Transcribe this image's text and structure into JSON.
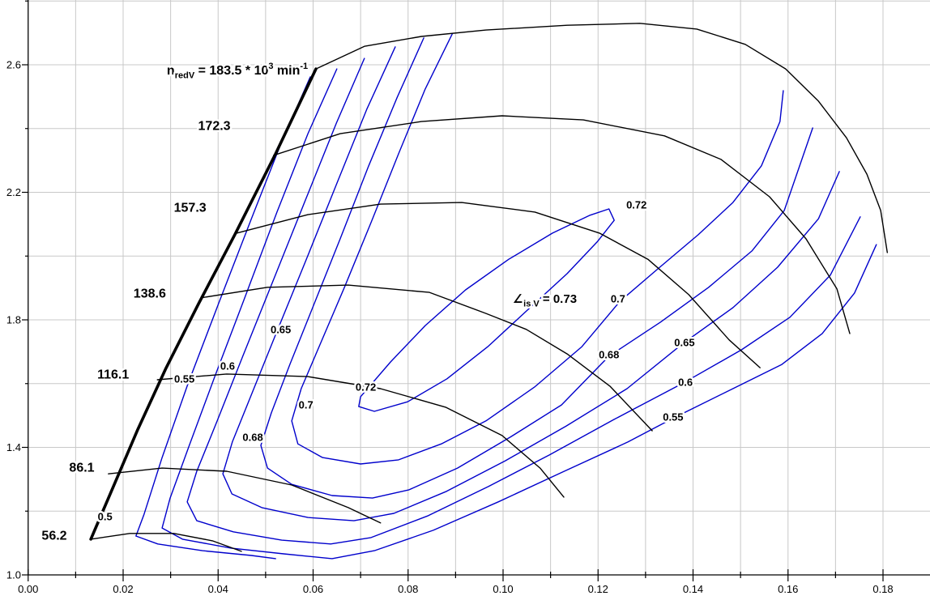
{
  "chart_data": {
    "type": "line",
    "description": "Compressor map: pressure ratio vs reduced mass flow with reduced-speed lines (black) and isentropic efficiency contours (blue)",
    "x_axis": {
      "min": 0,
      "max": 0.19,
      "grid_step": 0.01,
      "label_step": 0.02,
      "tick_labels": [
        "0.00",
        "0.02",
        "0.04",
        "0.06",
        "0.08",
        "0.10",
        "0.12",
        "0.14",
        "0.16",
        "0.18"
      ],
      "tick_values": [
        0,
        0.02,
        0.04,
        0.06,
        0.08,
        0.1,
        0.12,
        0.14,
        0.16,
        0.18
      ]
    },
    "y_axis": {
      "min": 1.0,
      "max": 2.8,
      "grid_step": 0.2,
      "label_step": 0.4,
      "tick_labels": [
        "1.0",
        "1.4",
        "1.8",
        "2.2",
        "2.6"
      ],
      "tick_values": [
        1.0,
        1.4,
        1.8,
        2.2,
        2.6
      ]
    },
    "colors": {
      "speed_line": "#000000",
      "contour": "#0000cc",
      "grid": "#c8c8c8",
      "axis": "#000000",
      "text": "#000000"
    },
    "surge_line": {
      "name": "surge-line",
      "points": [
        [
          0.0132,
          1.112
        ],
        [
          0.018,
          1.279
        ],
        [
          0.0231,
          1.457
        ],
        [
          0.029,
          1.648
        ],
        [
          0.0359,
          1.851
        ],
        [
          0.0435,
          2.067
        ],
        [
          0.0521,
          2.321
        ],
        [
          0.0606,
          2.587
        ]
      ]
    },
    "speed_lines": [
      {
        "value": 56.2,
        "points": [
          [
            0.0132,
            1.112
          ],
          [
            0.0214,
            1.13
          ],
          [
            0.0307,
            1.13
          ],
          [
            0.0388,
            1.107
          ],
          [
            0.0449,
            1.074
          ]
        ]
      },
      {
        "value": 86.1,
        "points": [
          [
            0.0169,
            1.317
          ],
          [
            0.0282,
            1.335
          ],
          [
            0.0418,
            1.325
          ],
          [
            0.0555,
            1.282
          ],
          [
            0.0674,
            1.211
          ],
          [
            0.0742,
            1.163
          ]
        ]
      },
      {
        "value": 116.1,
        "points": [
          [
            0.0272,
            1.612
          ],
          [
            0.0418,
            1.63
          ],
          [
            0.0589,
            1.622
          ],
          [
            0.0742,
            1.584
          ],
          [
            0.0879,
            1.526
          ],
          [
            0.0998,
            1.437
          ],
          [
            0.1078,
            1.335
          ],
          [
            0.1128,
            1.244
          ]
        ]
      },
      {
        "value": 138.6,
        "points": [
          [
            0.0364,
            1.869
          ],
          [
            0.0504,
            1.902
          ],
          [
            0.0674,
            1.909
          ],
          [
            0.0845,
            1.886
          ],
          [
            0.0964,
            1.82
          ],
          [
            0.1049,
            1.77
          ],
          [
            0.1135,
            1.693
          ],
          [
            0.1225,
            1.592
          ],
          [
            0.1314,
            1.452
          ]
        ]
      },
      {
        "value": 157.3,
        "points": [
          [
            0.0439,
            2.072
          ],
          [
            0.0589,
            2.13
          ],
          [
            0.0742,
            2.163
          ],
          [
            0.0913,
            2.168
          ],
          [
            0.1067,
            2.138
          ],
          [
            0.1203,
            2.072
          ],
          [
            0.1305,
            1.99
          ],
          [
            0.1391,
            1.879
          ],
          [
            0.1476,
            1.737
          ],
          [
            0.1541,
            1.65
          ]
        ]
      },
      {
        "value": 172.3,
        "points": [
          [
            0.0517,
            2.316
          ],
          [
            0.0657,
            2.384
          ],
          [
            0.0828,
            2.422
          ],
          [
            0.0998,
            2.44
          ],
          [
            0.1169,
            2.427
          ],
          [
            0.134,
            2.377
          ],
          [
            0.1459,
            2.303
          ],
          [
            0.1561,
            2.186
          ],
          [
            0.1638,
            2.054
          ],
          [
            0.1703,
            1.897
          ],
          [
            0.173,
            1.757
          ]
        ]
      },
      {
        "value": 183.5,
        "points": [
          [
            0.0606,
            2.587
          ],
          [
            0.0708,
            2.658
          ],
          [
            0.0828,
            2.689
          ],
          [
            0.0964,
            2.709
          ],
          [
            0.1135,
            2.724
          ],
          [
            0.1288,
            2.73
          ],
          [
            0.1408,
            2.712
          ],
          [
            0.151,
            2.664
          ],
          [
            0.1595,
            2.587
          ],
          [
            0.1664,
            2.486
          ],
          [
            0.1723,
            2.371
          ],
          [
            0.1766,
            2.257
          ],
          [
            0.1795,
            2.143
          ],
          [
            0.1809,
            2.011
          ]
        ]
      }
    ],
    "efficiency_contours": [
      {
        "value": 0.5,
        "closed": false,
        "points": [
          [
            0.0594,
            2.562
          ],
          [
            0.0534,
            2.359
          ],
          [
            0.047,
            2.117
          ],
          [
            0.0401,
            1.851
          ],
          [
            0.0336,
            1.597
          ],
          [
            0.0282,
            1.368
          ],
          [
            0.0244,
            1.19
          ],
          [
            0.0227,
            1.122
          ],
          [
            0.0273,
            1.097
          ],
          [
            0.0367,
            1.076
          ],
          [
            0.047,
            1.061
          ],
          [
            0.0521,
            1.051
          ]
        ]
      },
      {
        "value": 0.55,
        "closed": false,
        "points": [
          [
            0.065,
            2.587
          ],
          [
            0.0589,
            2.384
          ],
          [
            0.0524,
            2.138
          ],
          [
            0.0456,
            1.869
          ],
          [
            0.0393,
            1.622
          ],
          [
            0.0338,
            1.401
          ],
          [
            0.0299,
            1.241
          ],
          [
            0.0282,
            1.147
          ],
          [
            0.0325,
            1.112
          ],
          [
            0.0427,
            1.084
          ],
          [
            0.0538,
            1.066
          ],
          [
            0.064,
            1.051
          ],
          [
            0.0729,
            1.076
          ],
          [
            0.0853,
            1.14
          ],
          [
            0.099,
            1.229
          ],
          [
            0.1126,
            1.323
          ],
          [
            0.1263,
            1.417
          ],
          [
            0.136,
            1.493
          ],
          [
            0.1484,
            1.584
          ],
          [
            0.1587,
            1.66
          ],
          [
            0.1672,
            1.757
          ],
          [
            0.174,
            1.884
          ],
          [
            0.1786,
            2.036
          ]
        ]
      },
      {
        "value": 0.6,
        "closed": false,
        "points": [
          [
            0.0708,
            2.62
          ],
          [
            0.0649,
            2.417
          ],
          [
            0.0584,
            2.176
          ],
          [
            0.0517,
            1.927
          ],
          [
            0.0452,
            1.686
          ],
          [
            0.0398,
            1.483
          ],
          [
            0.0355,
            1.325
          ],
          [
            0.0335,
            1.229
          ],
          [
            0.0355,
            1.17
          ],
          [
            0.0432,
            1.135
          ],
          [
            0.0534,
            1.109
          ],
          [
            0.0637,
            1.097
          ],
          [
            0.0722,
            1.117
          ],
          [
            0.0841,
            1.185
          ],
          [
            0.0969,
            1.277
          ],
          [
            0.1097,
            1.376
          ],
          [
            0.1234,
            1.488
          ],
          [
            0.1382,
            1.604
          ],
          [
            0.1502,
            1.706
          ],
          [
            0.1604,
            1.808
          ],
          [
            0.1689,
            1.94
          ],
          [
            0.1752,
            2.123
          ]
        ]
      },
      {
        "value": 0.65,
        "closed": false,
        "points": [
          [
            0.0773,
            2.656
          ],
          [
            0.0713,
            2.46
          ],
          [
            0.0649,
            2.224
          ],
          [
            0.0584,
            1.983
          ],
          [
            0.0522,
            1.757
          ],
          [
            0.0471,
            1.569
          ],
          [
            0.043,
            1.417
          ],
          [
            0.041,
            1.317
          ],
          [
            0.0429,
            1.254
          ],
          [
            0.0492,
            1.211
          ],
          [
            0.0589,
            1.18
          ],
          [
            0.0686,
            1.17
          ],
          [
            0.077,
            1.193
          ],
          [
            0.0881,
            1.262
          ],
          [
            0.1005,
            1.358
          ],
          [
            0.1133,
            1.467
          ],
          [
            0.1261,
            1.584
          ],
          [
            0.1379,
            1.726
          ],
          [
            0.1484,
            1.838
          ],
          [
            0.1578,
            1.965
          ],
          [
            0.1664,
            2.117
          ],
          [
            0.1708,
            2.265
          ]
        ]
      },
      {
        "value": 0.68,
        "closed": false,
        "points": [
          [
            0.0833,
            2.684
          ],
          [
            0.0777,
            2.498
          ],
          [
            0.0717,
            2.283
          ],
          [
            0.0657,
            2.054
          ],
          [
            0.0599,
            1.838
          ],
          [
            0.0551,
            1.66
          ],
          [
            0.0512,
            1.508
          ],
          [
            0.049,
            1.406
          ],
          [
            0.0504,
            1.335
          ],
          [
            0.0555,
            1.284
          ],
          [
            0.064,
            1.249
          ],
          [
            0.0725,
            1.241
          ],
          [
            0.0802,
            1.267
          ],
          [
            0.0904,
            1.335
          ],
          [
            0.1015,
            1.432
          ],
          [
            0.1123,
            1.533
          ],
          [
            0.1223,
            1.686
          ],
          [
            0.1331,
            1.792
          ],
          [
            0.1433,
            1.902
          ],
          [
            0.1524,
            2.016
          ],
          [
            0.1592,
            2.143
          ],
          [
            0.1652,
            2.402
          ]
        ]
      },
      {
        "value": 0.7,
        "closed": false,
        "points": [
          [
            0.0893,
            2.697
          ],
          [
            0.0836,
            2.524
          ],
          [
            0.078,
            2.321
          ],
          [
            0.0722,
            2.105
          ],
          [
            0.0666,
            1.902
          ],
          [
            0.0615,
            1.724
          ],
          [
            0.0575,
            1.584
          ],
          [
            0.0555,
            1.483
          ],
          [
            0.0568,
            1.411
          ],
          [
            0.062,
            1.368
          ],
          [
            0.07,
            1.348
          ],
          [
            0.078,
            1.361
          ],
          [
            0.087,
            1.411
          ],
          [
            0.0964,
            1.483
          ],
          [
            0.1066,
            1.589
          ],
          [
            0.1166,
            1.716
          ],
          [
            0.1246,
            1.858
          ],
          [
            0.1326,
            1.96
          ],
          [
            0.1411,
            2.067
          ],
          [
            0.1484,
            2.168
          ],
          [
            0.1544,
            2.283
          ],
          [
            0.1583,
            2.422
          ],
          [
            0.159,
            2.519
          ]
        ]
      },
      {
        "value": 0.72,
        "closed": true,
        "points": [
          [
            0.07,
            1.559
          ],
          [
            0.0763,
            1.668
          ],
          [
            0.0836,
            1.782
          ],
          [
            0.0921,
            1.894
          ],
          [
            0.1012,
            1.99
          ],
          [
            0.1104,
            2.072
          ],
          [
            0.1183,
            2.128
          ],
          [
            0.1223,
            2.148
          ],
          [
            0.1234,
            2.112
          ],
          [
            0.1199,
            2.046
          ],
          [
            0.1135,
            1.945
          ],
          [
            0.1053,
            1.833
          ],
          [
            0.0968,
            1.716
          ],
          [
            0.0882,
            1.615
          ],
          [
            0.0799,
            1.543
          ],
          [
            0.0729,
            1.513
          ],
          [
            0.0696,
            1.528
          ]
        ]
      }
    ],
    "annotations": {
      "speed_annotation": {
        "x": 0.0292,
        "y": 2.57,
        "segments": [
          {
            "t": "n"
          },
          {
            "t": "redV",
            "style": "sub"
          },
          {
            "t": " = 183.5 * 10"
          },
          {
            "t": "3",
            "style": "sup"
          },
          {
            "t": " min"
          },
          {
            "t": "-1",
            "style": "sup"
          }
        ]
      },
      "efficiency_annotation": {
        "x": 0.102,
        "y": 1.853,
        "segments": [
          {
            "t": "∠"
          },
          {
            "t": "is V",
            "style": "sub"
          },
          {
            "t": " = 0.73"
          }
        ]
      },
      "speed_labels": [
        {
          "text": "172.3",
          "x": 0.0392,
          "y": 2.41
        },
        {
          "text": "157.3",
          "x": 0.0341,
          "y": 2.153
        },
        {
          "text": "138.6",
          "x": 0.0256,
          "y": 1.884
        },
        {
          "text": "116.1",
          "x": 0.0179,
          "y": 1.63
        },
        {
          "text": "86.1",
          "x": 0.0113,
          "y": 1.338
        },
        {
          "text": "56.2",
          "x": 0.0055,
          "y": 1.124
        }
      ],
      "efficiency_labels": [
        {
          "text": "0.5",
          "x": 0.0162,
          "y": 1.183
        },
        {
          "text": "0.55",
          "x": 0.0329,
          "y": 1.615
        },
        {
          "text": "0.6",
          "x": 0.042,
          "y": 1.655
        },
        {
          "text": "0.65",
          "x": 0.0532,
          "y": 1.77
        },
        {
          "text": "0.68",
          "x": 0.0473,
          "y": 1.432
        },
        {
          "text": "0.7",
          "x": 0.0585,
          "y": 1.533
        },
        {
          "text": "0.72",
          "x": 0.0711,
          "y": 1.589
        },
        {
          "text": "0.72",
          "x": 0.1281,
          "y": 2.161
        },
        {
          "text": "0.7",
          "x": 0.1242,
          "y": 1.866
        },
        {
          "text": "0.68",
          "x": 0.1223,
          "y": 1.691
        },
        {
          "text": "0.65",
          "x": 0.1382,
          "y": 1.729
        },
        {
          "text": "0.6",
          "x": 0.1384,
          "y": 1.604
        },
        {
          "text": "0.55",
          "x": 0.1358,
          "y": 1.495
        }
      ]
    }
  }
}
